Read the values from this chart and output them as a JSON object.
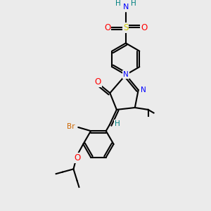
{
  "background_color": "#ebebeb",
  "atom_colors": {
    "C": "#000000",
    "H": "#008080",
    "N": "#0000FF",
    "O": "#FF0000",
    "S": "#CCCC00",
    "Br": "#CC6600"
  },
  "figsize": [
    3.0,
    3.0
  ],
  "dpi": 100
}
